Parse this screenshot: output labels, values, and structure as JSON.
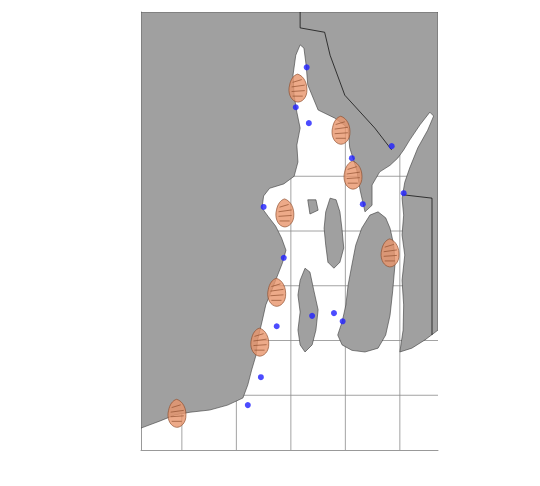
{
  "chart_data": {
    "type": "map",
    "xlim": [
      -71.675,
      -71.13
    ],
    "ylim": [
      41.3,
      42.1
    ],
    "xticks": [
      -71.6,
      -71.5,
      -71.4,
      -71.3,
      -71.2
    ],
    "yticks": [
      41.4,
      41.5,
      41.6,
      41.7,
      41.8
    ],
    "grid": true,
    "tick_labels": false,
    "land": {
      "color": "#a0a0a0",
      "polygons": [
        [
          [
            -71.675,
            41.34
          ],
          [
            -71.64,
            41.353
          ],
          [
            -71.613,
            41.364
          ],
          [
            -71.585,
            41.369
          ],
          [
            -71.549,
            41.373
          ],
          [
            -71.516,
            41.382
          ],
          [
            -71.488,
            41.395
          ],
          [
            -71.479,
            41.419
          ],
          [
            -71.472,
            41.446
          ],
          [
            -71.464,
            41.473
          ],
          [
            -71.461,
            41.501
          ],
          [
            -71.453,
            41.534
          ],
          [
            -71.446,
            41.565
          ],
          [
            -71.435,
            41.592
          ],
          [
            -71.424,
            41.62
          ],
          [
            -71.415,
            41.643
          ],
          [
            -71.409,
            41.665
          ],
          [
            -71.417,
            41.687
          ],
          [
            -71.428,
            41.709
          ],
          [
            -71.442,
            41.727
          ],
          [
            -71.453,
            41.742
          ],
          [
            -71.45,
            41.764
          ],
          [
            -71.439,
            41.778
          ],
          [
            -71.413,
            41.786
          ],
          [
            -71.394,
            41.8
          ],
          [
            -71.387,
            41.826
          ],
          [
            -71.389,
            41.857
          ],
          [
            -71.383,
            41.888
          ],
          [
            -71.389,
            41.917
          ],
          [
            -71.394,
            41.948
          ],
          [
            -71.396,
            41.985
          ],
          [
            -71.391,
            42.021
          ],
          [
            -71.383,
            42.04
          ],
          [
            -71.376,
            42.034
          ],
          [
            -71.372,
            42.003
          ],
          [
            -71.369,
            41.967
          ],
          [
            -71.35,
            41.921
          ],
          [
            -71.319,
            41.906
          ],
          [
            -71.295,
            41.888
          ],
          [
            -71.292,
            41.852
          ],
          [
            -71.279,
            41.811
          ],
          [
            -71.273,
            41.775
          ],
          [
            -71.264,
            41.735
          ],
          [
            -71.251,
            41.747
          ],
          [
            -71.251,
            41.784
          ],
          [
            -71.237,
            41.808
          ],
          [
            -71.218,
            41.82
          ],
          [
            -71.204,
            41.833
          ],
          [
            -71.193,
            41.848
          ],
          [
            -71.182,
            41.866
          ],
          [
            -71.163,
            41.894
          ],
          [
            -71.145,
            41.917
          ],
          [
            -71.138,
            41.91
          ],
          [
            -71.149,
            41.884
          ],
          [
            -71.167,
            41.852
          ],
          [
            -71.182,
            41.815
          ],
          [
            -71.191,
            41.789
          ],
          [
            -71.196,
            41.76
          ],
          [
            -71.193,
            41.729
          ],
          [
            -71.196,
            41.693
          ],
          [
            -71.191,
            41.656
          ],
          [
            -71.196,
            41.61
          ],
          [
            -71.193,
            41.565
          ],
          [
            -71.194,
            41.519
          ],
          [
            -71.2,
            41.479
          ],
          [
            -71.178,
            41.486
          ],
          [
            -71.154,
            41.501
          ],
          [
            -71.13,
            41.519
          ],
          [
            -71.13,
            42.1
          ],
          [
            -71.675,
            42.1
          ]
        ],
        [
          [
            -71.24,
            41.735
          ],
          [
            -71.226,
            41.724
          ],
          [
            -71.218,
            41.705
          ],
          [
            -71.211,
            41.674
          ],
          [
            -71.209,
            41.638
          ],
          [
            -71.213,
            41.592
          ],
          [
            -71.218,
            41.546
          ],
          [
            -71.226,
            41.51
          ],
          [
            -71.24,
            41.486
          ],
          [
            -71.264,
            41.479
          ],
          [
            -71.288,
            41.482
          ],
          [
            -71.306,
            41.492
          ],
          [
            -71.314,
            41.51
          ],
          [
            -71.306,
            41.534
          ],
          [
            -71.299,
            41.565
          ],
          [
            -71.295,
            41.601
          ],
          [
            -71.288,
            41.638
          ],
          [
            -71.281,
            41.674
          ],
          [
            -71.27,
            41.705
          ],
          [
            -71.255,
            41.729
          ]
        ],
        [
          [
            -71.328,
            41.76
          ],
          [
            -71.317,
            41.757
          ],
          [
            -71.31,
            41.735
          ],
          [
            -71.306,
            41.702
          ],
          [
            -71.303,
            41.669
          ],
          [
            -71.31,
            41.643
          ],
          [
            -71.321,
            41.632
          ],
          [
            -71.332,
            41.643
          ],
          [
            -71.336,
            41.674
          ],
          [
            -71.339,
            41.705
          ],
          [
            -71.336,
            41.735
          ]
        ],
        [
          [
            -71.374,
            41.632
          ],
          [
            -71.365,
            41.625
          ],
          [
            -71.358,
            41.592
          ],
          [
            -71.35,
            41.556
          ],
          [
            -71.354,
            41.519
          ],
          [
            -71.361,
            41.492
          ],
          [
            -71.374,
            41.479
          ],
          [
            -71.383,
            41.492
          ],
          [
            -71.387,
            41.519
          ],
          [
            -71.383,
            41.552
          ],
          [
            -71.387,
            41.583
          ],
          [
            -71.383,
            41.61
          ]
        ],
        [
          [
            -71.369,
            41.757
          ],
          [
            -71.354,
            41.757
          ],
          [
            -71.35,
            41.738
          ],
          [
            -71.365,
            41.731
          ]
        ]
      ]
    },
    "borders": {
      "color": "#000000",
      "lines": [
        [
          [
            -71.383,
            42.1
          ],
          [
            -71.383,
            42.071
          ],
          [
            -71.338,
            42.063
          ],
          [
            -71.328,
            42.021
          ],
          [
            -71.301,
            41.948
          ],
          [
            -71.246,
            41.888
          ],
          [
            -71.215,
            41.848
          ]
        ],
        [
          [
            -71.193,
            41.766
          ],
          [
            -71.141,
            41.76
          ],
          [
            -71.141,
            41.51
          ]
        ]
      ]
    },
    "series": [
      {
        "marker": "circle",
        "color": "#1f1fff",
        "x": [
          -71.371,
          -71.391,
          -71.367,
          -71.288,
          -71.215,
          -71.45,
          -71.268,
          -71.193,
          -71.413,
          -71.426,
          -71.361,
          -71.321,
          -71.305,
          -71.455,
          -71.479
        ],
        "y": [
          41.999,
          41.926,
          41.897,
          41.833,
          41.855,
          41.744,
          41.749,
          41.769,
          41.651,
          41.526,
          41.545,
          41.55,
          41.535,
          41.433,
          41.382
        ]
      },
      {
        "marker": "oyster",
        "color": "#e8956b",
        "x": [
          -71.387,
          -71.308,
          -71.286,
          -71.411,
          -71.218,
          -71.426,
          -71.457,
          -71.609
        ],
        "y": [
          41.961,
          41.884,
          41.802,
          41.733,
          41.66,
          41.588,
          41.497,
          41.367
        ]
      }
    ]
  }
}
